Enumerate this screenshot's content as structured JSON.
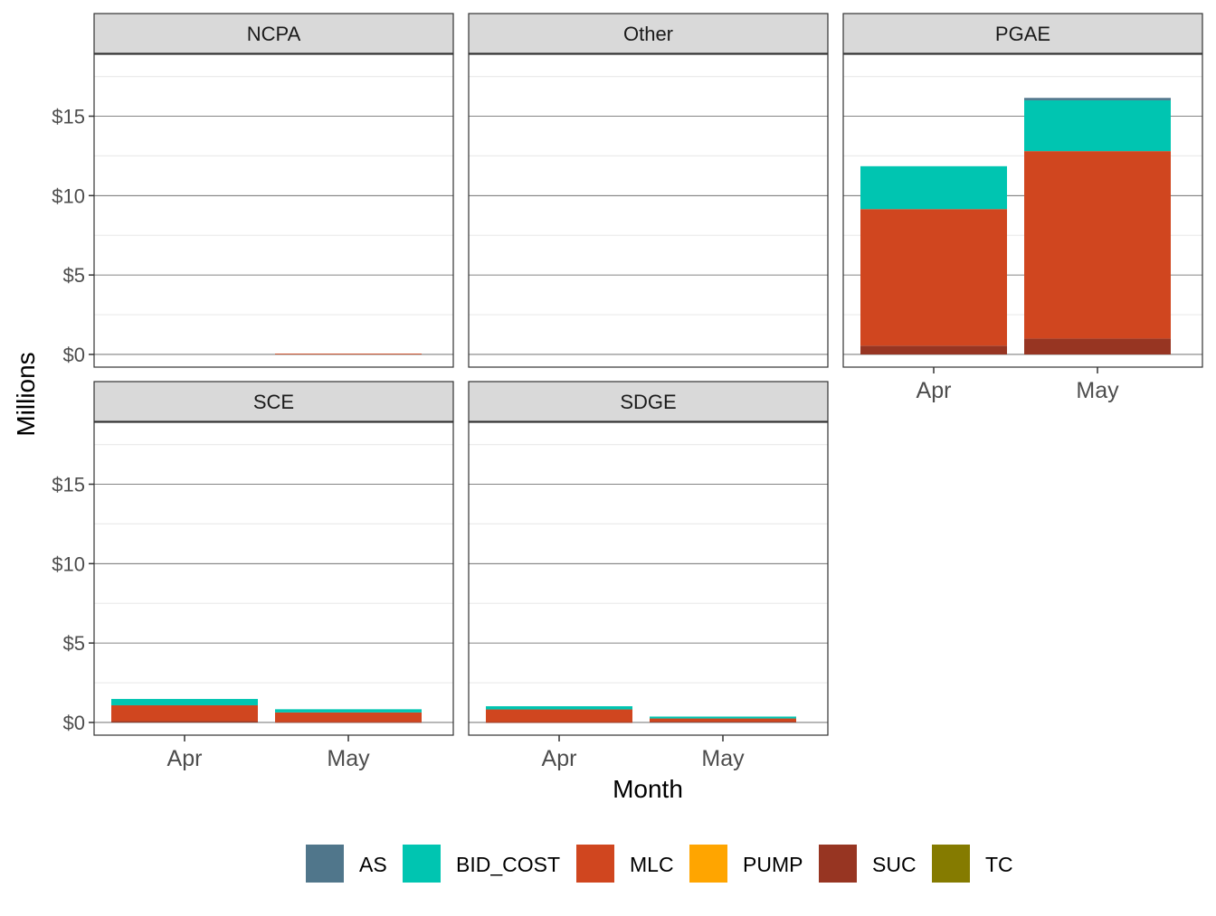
{
  "chart_data": {
    "type": "bar",
    "subtype": "stacked-faceted",
    "xlabel": "Month",
    "ylabel": "Millions",
    "categories": [
      "Apr",
      "May"
    ],
    "ylim": [
      -0.8,
      18.9
    ],
    "yticks": [
      0,
      5,
      10,
      15
    ],
    "ytick_labels": [
      "$0",
      "$5",
      "$10",
      "$15"
    ],
    "legend": {
      "position": "bottom",
      "keys": [
        "AS",
        "BID_COST",
        "MLC",
        "PUMP",
        "SUC",
        "TC"
      ],
      "colors": {
        "AS": "#50768b",
        "BID_COST": "#00c5b1",
        "MLC": "#d0461f",
        "PUMP": "#ffa500",
        "SUC": "#973522",
        "TC": "#857b00"
      }
    },
    "facets": [
      {
        "name": "NCPA",
        "data": {
          "Apr": {},
          "May": {
            "MLC": 0.05
          }
        }
      },
      {
        "name": "Other",
        "data": {
          "Apr": {},
          "May": {}
        }
      },
      {
        "name": "PGAE",
        "data": {
          "Apr": {
            "SUC": 0.55,
            "MLC": 8.6,
            "BID_COST": 2.7
          },
          "May": {
            "SUC": 1.0,
            "MLC": 11.8,
            "BID_COST": 3.2,
            "AS": 0.15
          }
        }
      },
      {
        "name": "SCE",
        "data": {
          "Apr": {
            "SUC": 0.08,
            "MLC": 1.0,
            "BID_COST": 0.4
          },
          "May": {
            "SUC": 0.03,
            "MLC": 0.6,
            "BID_COST": 0.2
          }
        }
      },
      {
        "name": "SDGE",
        "data": {
          "Apr": {
            "SUC": 0.02,
            "MLC": 0.8,
            "BID_COST": 0.2
          },
          "May": {
            "SUC": 0.05,
            "MLC": 0.2,
            "BID_COST": 0.12
          }
        }
      }
    ]
  }
}
